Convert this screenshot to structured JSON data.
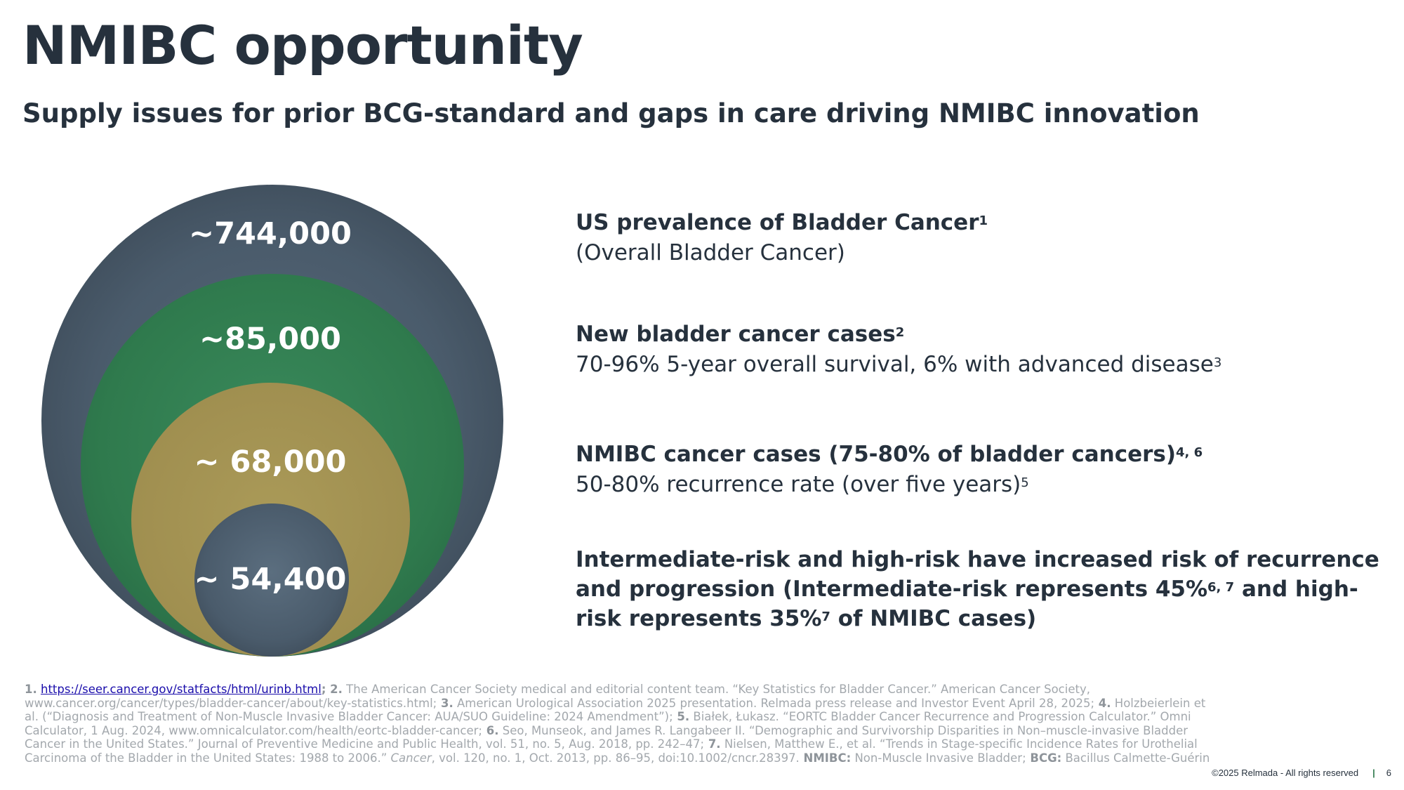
{
  "title": "NMIBC opportunity",
  "subtitle": "Supply issues for prior BCG-standard and gaps in care driving NMIBC innovation",
  "circles": [
    {
      "value": "~744,000",
      "color": "#4a5b6b"
    },
    {
      "value": "~85,000",
      "color": "#2f7a4d"
    },
    {
      "value": "~ 68,000",
      "color": "#a08f50"
    },
    {
      "value": "~ 54,400",
      "color": "#4a5b6b"
    }
  ],
  "blocks": {
    "b1": {
      "heading": "US prevalence of Bladder Cancer",
      "heading_sup": "1",
      "text": "(Overall Bladder Cancer)"
    },
    "b2": {
      "heading": "New bladder cancer cases",
      "heading_sup": "2",
      "text": "70-96% 5-year overall survival, 6% with advanced disease",
      "text_sup": "3"
    },
    "b3": {
      "heading": "NMIBC cancer cases (75-80% of bladder cancers)",
      "heading_sup": "4, 6",
      "text": "50-80% recurrence rate (over five years)",
      "text_sup": "5"
    },
    "b4": {
      "part1": "Intermediate-risk and high-risk have increased risk of recurrence and progression (Intermediate-risk represents 45%",
      "sup1": "6, 7",
      "part2": " and high-risk represents 35%",
      "sup2": "7",
      "part3": " of NMIBC cases)"
    }
  },
  "references": {
    "r1_num": "1.",
    "r1_link": "https://seer.cancer.gov/statfacts/html/urinb.html",
    "r2_num": "; 2.",
    "r2": " The American Cancer Society medical and editorial content team. “Key Statistics for Bladder Cancer.” American Cancer Society, www.cancer.org/cancer/types/bladder-cancer/about/key-statistics.html;",
    "r3_num": " 3.",
    "r3": "  American Urological Association 2025 presentation. Relmada press release and Investor Event April 28, 2025;",
    "r4_num": " 4.",
    "r4": " Holzbeierlein et al. (“Diagnosis and Treatment of Non-Muscle Invasive Bladder Cancer: AUA/SUO Guideline: 2024 Amendment”);",
    "r5_num": " 5.",
    "r5": " Białek, Łukasz. “EORTC Bladder Cancer Recurrence and Progression Calculator.” Omni Calculator, 1 Aug. 2024, www.omnicalculator.com/health/eortc-bladder-cancer;",
    "r6_num": " 6.",
    "r6": " Seo, Munseok, and James R. Langabeer II. “Demographic and Survivorship Disparities in Non–muscle-invasive Bladder Cancer in the United States.” Journal of Preventive Medicine and Public Health, vol. 51, no. 5, Aug. 2018, pp. 242–47;",
    "r7_num": " 7.",
    "r7a": " Nielsen, Matthew E., et al. “Trends in Stage-specific Incidence Rates for Urothelial Carcinoma of the Bladder in the United States: 1988 to 2006.” ",
    "r7_journal": "Cancer",
    "r7b": ", vol. 120, no. 1, Oct. 2013, pp. 86–95, doi:10.1002/cncr.28397.",
    "abbr1_term": " NMIBC:",
    "abbr1_def": " Non-Muscle Invasive Bladder;",
    "abbr2_term": " BCG:",
    "abbr2_def": " Bacillus Calmette-Guérin"
  },
  "footer": {
    "copyright": "©2025 Relmada - All rights reserved",
    "separator": "|",
    "page": "6"
  }
}
